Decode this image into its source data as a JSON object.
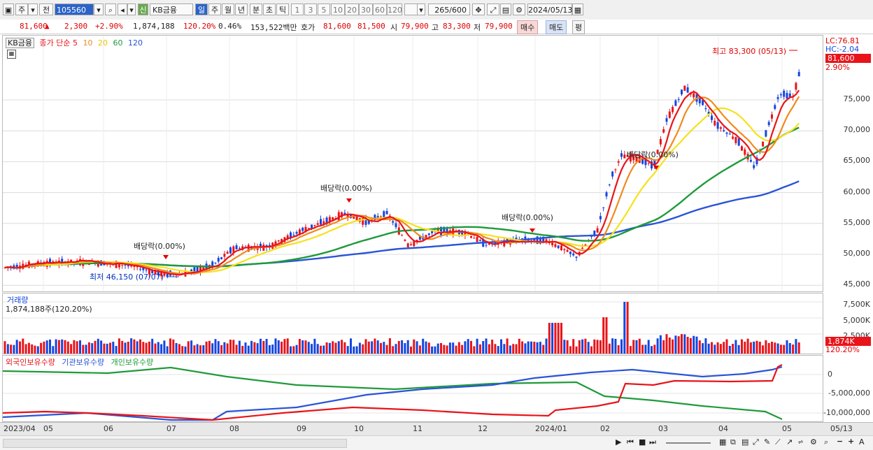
{
  "toolbar": {
    "period_buttons": [
      "주",
      "전"
    ],
    "code": "105560",
    "stock_badge": "신",
    "stock_name": "KB금융",
    "tf_buttons": [
      "일",
      "주",
      "월",
      "년",
      "분",
      "초",
      "틱"
    ],
    "num_buttons": [
      "1",
      "3",
      "5",
      "10",
      "20",
      "30",
      "60",
      "120"
    ],
    "count": "265",
    "count_total": "/600",
    "date": "2024/05/13"
  },
  "info": {
    "price": "81,600",
    "up_icon": "▲",
    "change": "2,300",
    "change_pct": "+2.90%",
    "volume": "1,874,188",
    "volume_ratio": "120.20%",
    "turnover": "0.46%",
    "amount": "153,522백만",
    "quote_label": "호가",
    "ask": "81,600",
    "bid": "81,500",
    "open_label": "시",
    "open": "79,900",
    "high_label": "고",
    "high": "83,300",
    "low_label": "저",
    "low": "79,900",
    "buy_btn": "매수",
    "sell_btn": "매도",
    "eval_btn": "평"
  },
  "price_legend": {
    "name": "KB금융",
    "ma_label": "종가 단순",
    "ma": [
      "5",
      "10",
      "20",
      "60",
      "120"
    ]
  },
  "price_axis": {
    "ticks": [
      "75,000",
      "70,000",
      "65,000",
      "60,000",
      "55,000",
      "50,000",
      "45,000"
    ],
    "lc": "LC:76.81",
    "hc": "HC:-2.04",
    "current": "81,600",
    "pct": "2.90%"
  },
  "annotations": {
    "high": "최고 83,300 (05/13)",
    "low": "최저 46,150 (07/07)",
    "div1": "배당락(0.00%)",
    "div2": "배당락(0.00%)",
    "div3": "배당락(0.00%)",
    "div4": "배당락(0.00%)"
  },
  "volume": {
    "title": "거래량",
    "value": "1,874,188주(120.20%)",
    "ticks": [
      "7,500K",
      "5,000K",
      "2,500K"
    ],
    "current": "1,874K",
    "pct": "120.20%"
  },
  "holders": {
    "foreign": "외국인보유수량",
    "inst": "기관보유수량",
    "indiv": "개인보유수량",
    "ticks": [
      "0",
      "-5,000,000",
      "-10,000,000"
    ]
  },
  "x_axis": [
    "2023/04",
    "05",
    "06",
    "07",
    "08",
    "09",
    "10",
    "11",
    "12",
    "2024/01",
    "02",
    "03",
    "04",
    "05",
    "05/13"
  ],
  "colors": {
    "up": "#e8141a",
    "down": "#1446e0",
    "ma5": "#e8141a",
    "ma10": "#f08a1e",
    "ma20": "#f6e11c",
    "ma60": "#1f9a3a",
    "ma120": "#2a54d8"
  }
}
